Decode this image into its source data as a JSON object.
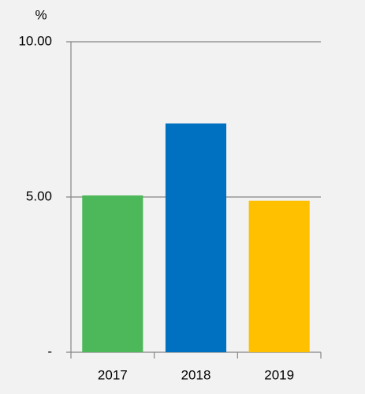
{
  "chart_data": {
    "type": "bar",
    "y_label": "%",
    "categories": [
      "2017",
      "2018",
      "2019"
    ],
    "values": [
      5.05,
      7.37,
      4.88
    ],
    "colors": [
      "#4db85a",
      "#0070c0",
      "#ffc000"
    ],
    "ylim": [
      0,
      10
    ],
    "yticks": [
      {
        "value": 0,
        "label": "-"
      },
      {
        "value": 5,
        "label": "5.00"
      },
      {
        "value": 10,
        "label": "10.00"
      }
    ],
    "grid": true
  }
}
